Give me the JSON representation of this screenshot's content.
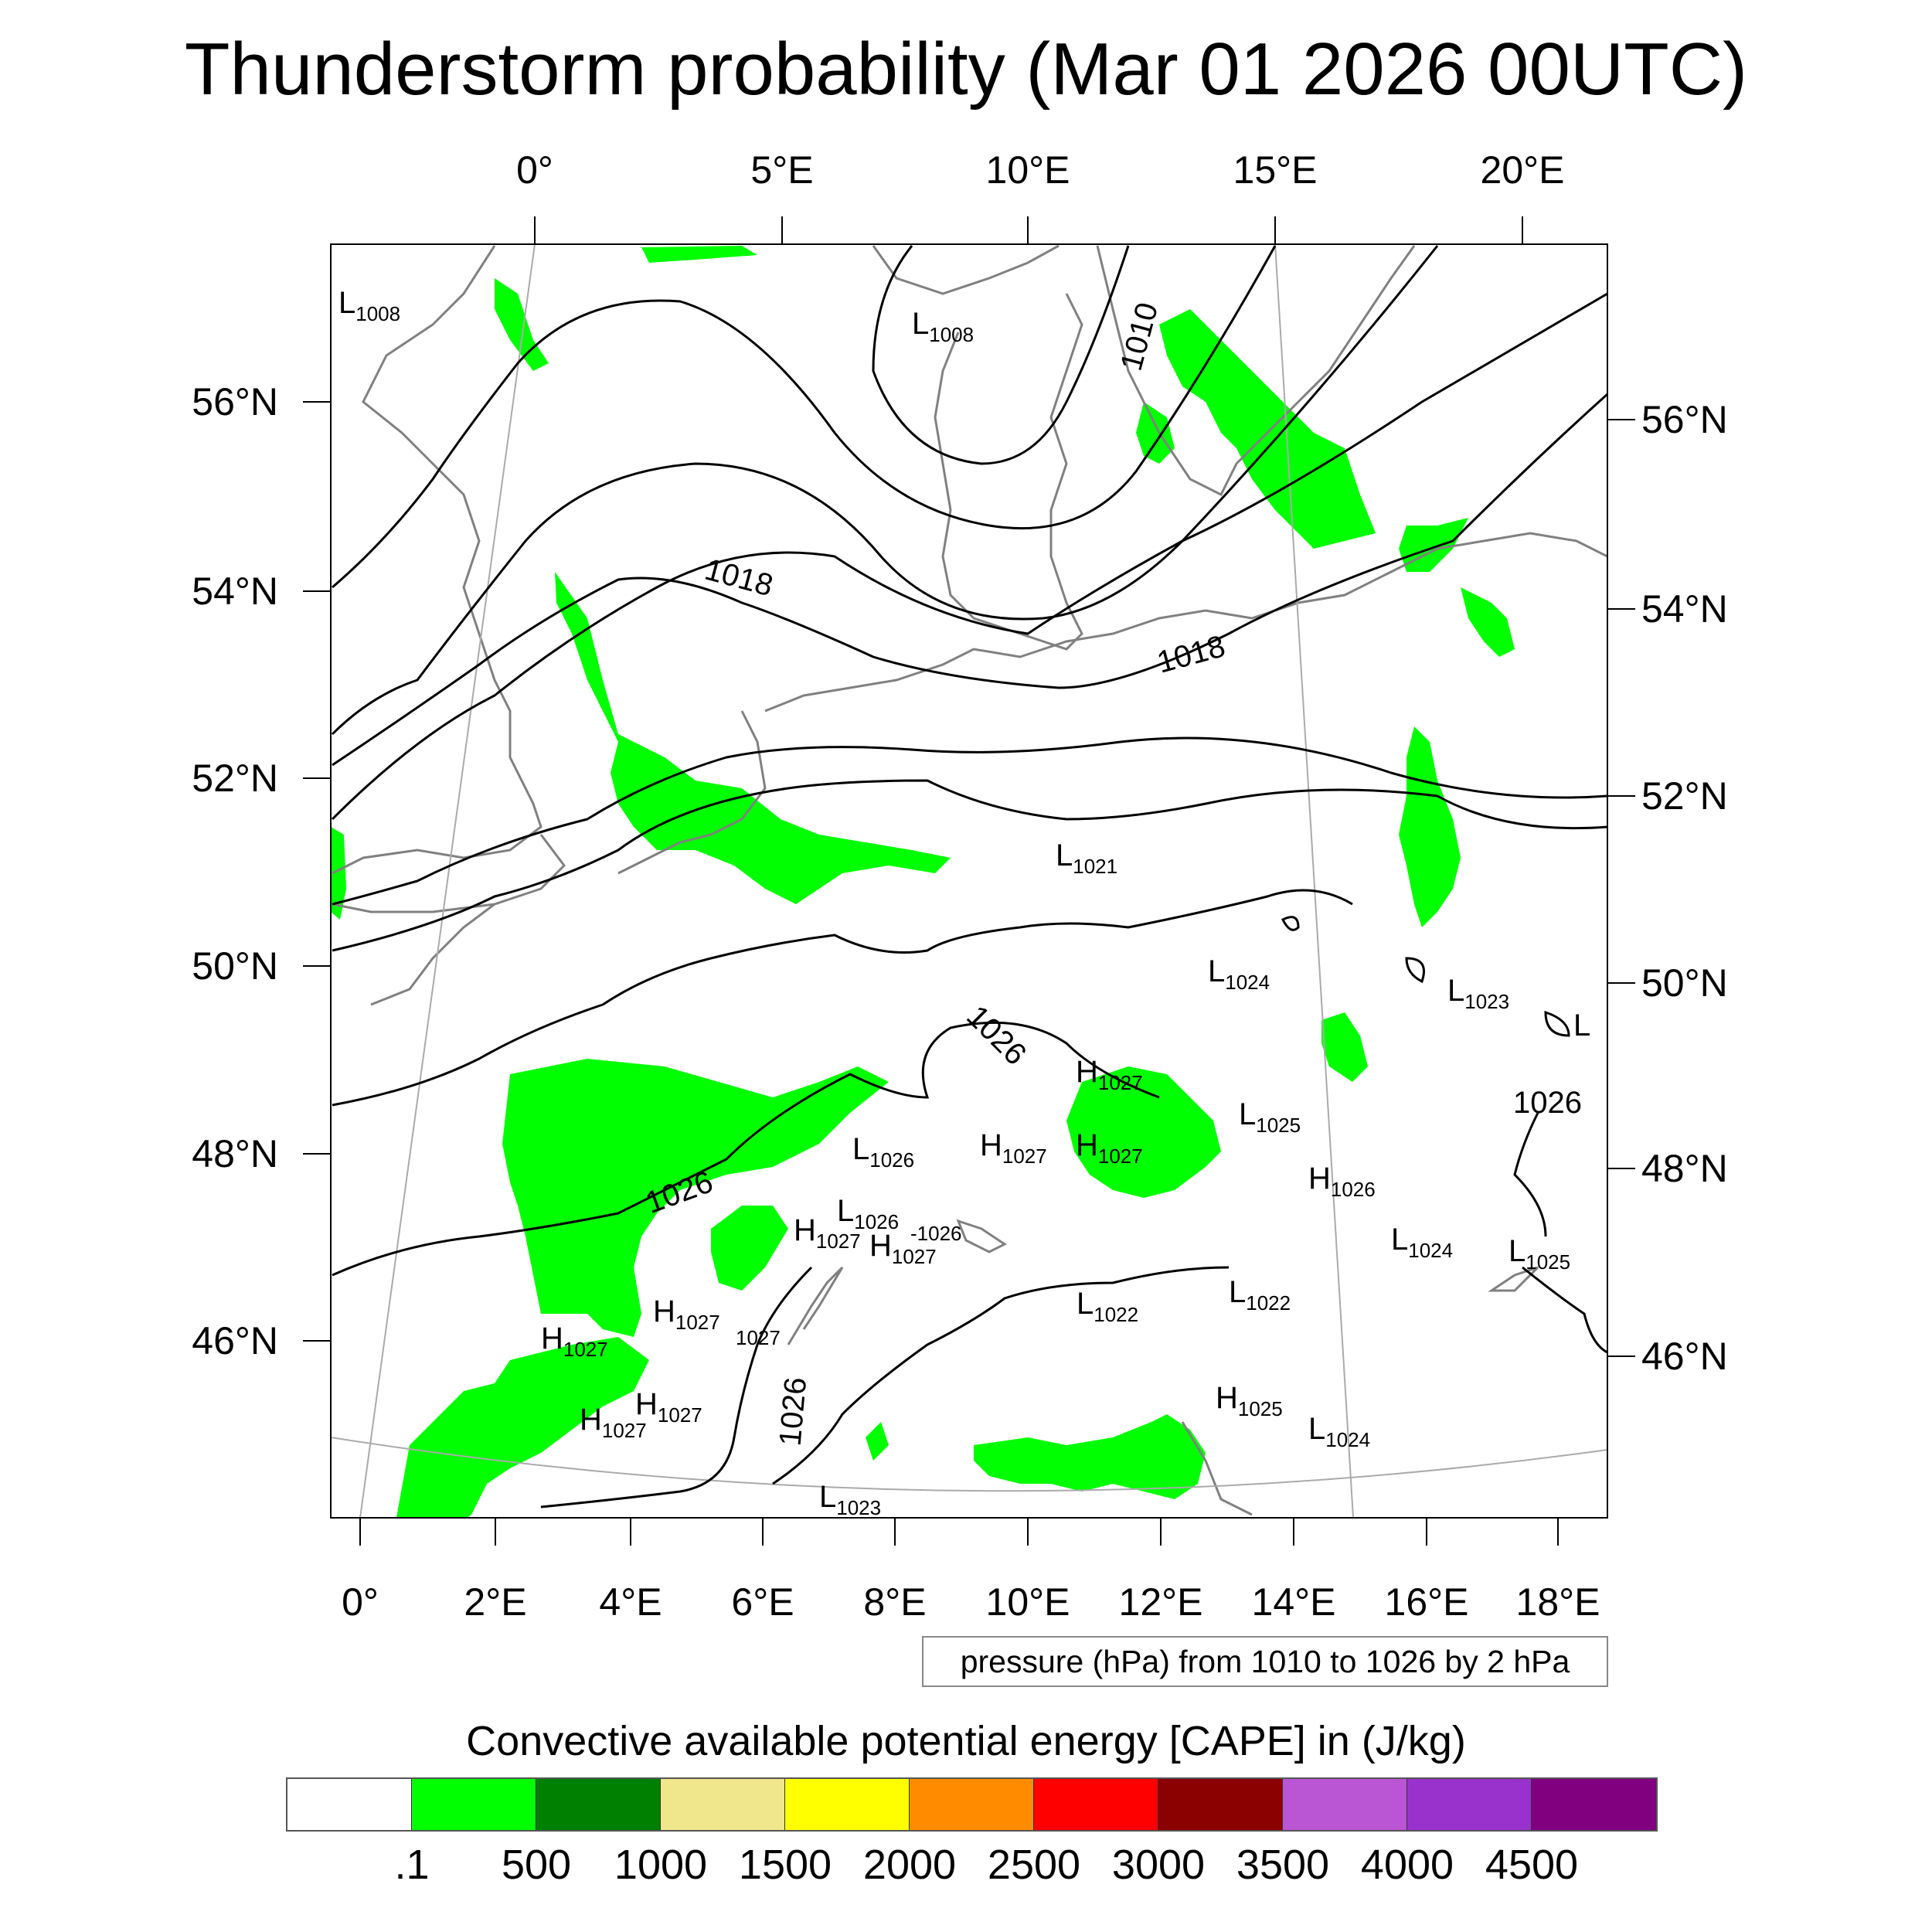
{
  "title": "Thunderstorm probability (Mar 01 2026 00UTC)",
  "map": {
    "top_lon_labels": [
      "0°",
      "5°E",
      "10°E",
      "15°E",
      "20°E"
    ],
    "bottom_lon_labels": [
      "0°",
      "2°E",
      "4°E",
      "6°E",
      "8°E",
      "10°E",
      "12°E",
      "14°E",
      "16°E",
      "18°E"
    ],
    "left_lat_labels": [
      "56°N",
      "54°N",
      "52°N",
      "50°N",
      "48°N",
      "46°N"
    ],
    "right_lat_labels": [
      "56°N",
      "54°N",
      "52°N",
      "50°N",
      "48°N",
      "46°N"
    ],
    "isobar_labels": [
      "1010",
      "1018",
      "1018",
      "1026",
      "1026",
      "1026",
      "1026"
    ],
    "pressure_centers": [
      {
        "type": "L",
        "value": "1008"
      },
      {
        "type": "L",
        "value": "1008"
      },
      {
        "type": "L",
        "value": "1021"
      },
      {
        "type": "L",
        "value": "1024"
      },
      {
        "type": "L",
        "value": "1023"
      },
      {
        "type": "L",
        "value": ""
      },
      {
        "type": "H",
        "value": "1027"
      },
      {
        "type": "L",
        "value": "1025"
      },
      {
        "type": "H",
        "value": "1027"
      },
      {
        "type": "H",
        "value": "1027"
      },
      {
        "type": "L",
        "value": "1026"
      },
      {
        "type": "H",
        "value": "1026"
      },
      {
        "type": "L",
        "value": "1026"
      },
      {
        "type": "H",
        "value": "1027"
      },
      {
        "type": "H",
        "value": "1027"
      },
      {
        "type": "L",
        "value": "1024"
      },
      {
        "type": "L",
        "value": "1025"
      },
      {
        "type": "L",
        "value": "1022"
      },
      {
        "type": "L",
        "value": "1022"
      },
      {
        "type": "H",
        "value": "1027"
      },
      {
        "type": "H",
        "value": "1027"
      },
      {
        "type": "H",
        "value": "1027"
      },
      {
        "type": "H",
        "value": "1027"
      },
      {
        "type": "H",
        "value": "1025"
      },
      {
        "type": "L",
        "value": "1024"
      },
      {
        "type": "L",
        "value": "1023"
      }
    ],
    "extra_labels": [
      "-1026",
      "1027"
    ],
    "colors": {
      "land_coast": "#808080",
      "isobar": "#000000",
      "cape_low": "#00ff00"
    }
  },
  "contour_info": "pressure (hPa) from 1010 to 1026 by 2 hPa",
  "colorbar": {
    "title": "Convective available potential energy [CAPE] in (J/kg)",
    "colors": [
      "#ffffff",
      "#00ff00",
      "#008000",
      "#f0e68c",
      "#ffff00",
      "#ff8c00",
      "#ff0000",
      "#8b0000",
      "#ba55d3",
      "#9932cc",
      "#800080"
    ],
    "labels": [
      ".1",
      "500",
      "1000",
      "1500",
      "2000",
      "2500",
      "3000",
      "3500",
      "4000",
      "4500"
    ]
  }
}
